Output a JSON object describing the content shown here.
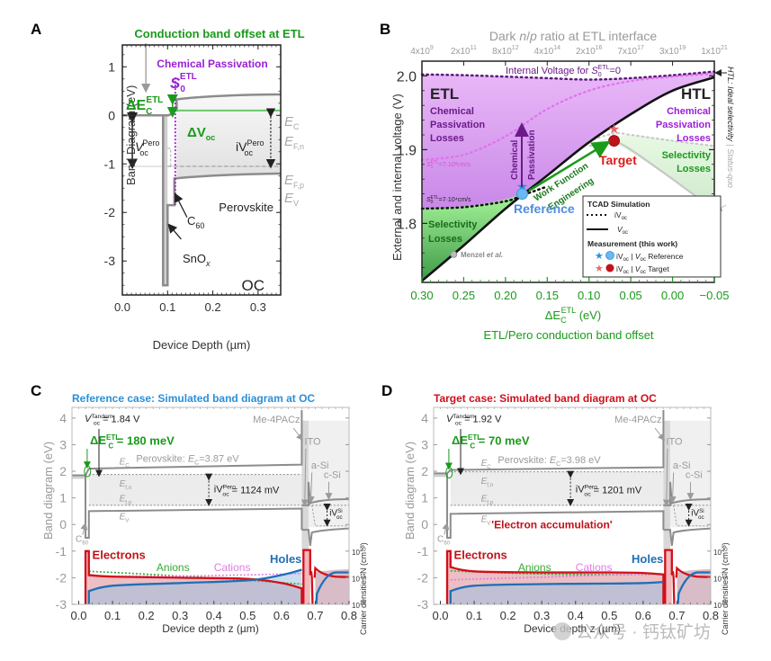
{
  "chart_data": [
    {
      "panel": "A",
      "type": "line",
      "title": "Conduction band offset at ETL",
      "xlabel": "Device Depth (µm)",
      "ylabel": "Band Diagram (eV)",
      "xlim": [
        0.0,
        0.35
      ],
      "ylim": [
        -3.7,
        1.45
      ],
      "xticks": [
        "0.0",
        "0.1",
        "0.2",
        "0.3"
      ],
      "yticks": [
        "1",
        "0",
        "-1",
        "-2",
        "-3"
      ],
      "series": [
        {
          "name": "E_C",
          "x": [
            0.0,
            0.09,
            0.1,
            0.115,
            0.12,
            0.2,
            0.35
          ],
          "y": [
            0.0,
            0.0,
            0.0,
            0.1,
            0.33,
            0.41,
            0.43
          ]
        },
        {
          "name": "E_F,n",
          "x": [
            0.115,
            0.35
          ],
          "y": [
            0.1,
            0.1
          ]
        },
        {
          "name": "E_F,p",
          "x": [
            0.1,
            0.35
          ],
          "y": [
            -1.05,
            -1.05
          ]
        },
        {
          "name": "E_V",
          "x": [
            0.09,
            0.115,
            0.12,
            0.2,
            0.35
          ],
          "y": [
            -3.5,
            -1.85,
            -1.3,
            -1.22,
            -1.2
          ]
        }
      ],
      "annotations": {
        "chem_passivation": "Chemical Passivation",
        "s0_main": "S",
        "s0_sub": "0",
        "s0_sup": "ETL",
        "delta_ec_main": "ΔE",
        "delta_ec_sub": "C",
        "delta_ec_sup": "ETL",
        "delta_voc_main": "ΔV",
        "delta_voc_sub": "oc",
        "voc_main": "V",
        "voc_sub": "oc",
        "voc_sup": "Pero",
        "ivoc_main": "iV",
        "ivoc_sub": "oc",
        "ivoc_sup": "Pero",
        "ec_main": "E",
        "ec_sub": "C",
        "efn_main": "E",
        "efn_sub": "F,n",
        "efp_main": "E",
        "efp_sub": "F,p",
        "ev_main": "E",
        "ev_sub": "V",
        "perovskite": "Perovskite",
        "c60_main": "C",
        "c60_sub": "60",
        "snox_main": "SnO",
        "snox_sub": "x",
        "oc": "OC"
      }
    },
    {
      "panel": "B",
      "type": "line",
      "title": "",
      "xlabel_main": "ΔE",
      "xlabel_sub": "C",
      "xlabel_sup": "ETL",
      "xlabel_unit": " (eV)",
      "xlabel2": "ETL/Pero conduction band offset",
      "ylabel": "External and internal voltage (V)",
      "top_axis_label": "Dark n/p ratio at ETL interface",
      "top_ticks": [
        {
          "m": "4x10",
          "e": "9"
        },
        {
          "m": "2x10",
          "e": "11"
        },
        {
          "m": "8x10",
          "e": "12"
        },
        {
          "m": "4x10",
          "e": "14"
        },
        {
          "m": "2x10",
          "e": "16"
        },
        {
          "m": "7x10",
          "e": "17"
        },
        {
          "m": "3x10",
          "e": "19"
        },
        {
          "m": "1x10",
          "e": "21"
        }
      ],
      "xlim": [
        0.3,
        -0.05
      ],
      "ylim": [
        1.72,
        2.02
      ],
      "xticks": [
        "0.30",
        "0.25",
        "0.20",
        "0.15",
        "0.10",
        "0.05",
        "0.00",
        "−0.05"
      ],
      "xtick_values": [
        0.3,
        0.25,
        0.2,
        0.15,
        0.1,
        0.05,
        0.0,
        -0.05
      ],
      "yticks": [
        "2.0",
        "1.9",
        "1.8"
      ],
      "ytick_values": [
        2.0,
        1.9,
        1.8
      ],
      "series": [
        {
          "name": "iVoc S0=0",
          "style": "dotted",
          "x": [
            0.3,
            0.25,
            0.2,
            0.15,
            0.1,
            0.05,
            0.0,
            -0.05
          ],
          "y": [
            2.002,
            2.001,
            1.999,
            1.997,
            1.995,
            1.997,
            2.001,
            2.006
          ]
        },
        {
          "name": "iVoc S0=7e2",
          "style": "dotted-pink",
          "x": [
            0.3,
            0.25,
            0.2,
            0.15,
            0.1,
            0.05,
            0.0,
            -0.05
          ],
          "y": [
            1.886,
            1.893,
            1.918,
            1.955,
            1.98,
            1.993,
            1.999,
            2.003
          ]
        },
        {
          "name": "iVoc S0=7e4",
          "style": "dotted",
          "x": [
            0.3,
            0.25,
            0.2,
            0.18,
            0.15
          ],
          "y": [
            1.82,
            1.822,
            1.83,
            1.838,
            1.85
          ]
        },
        {
          "name": "Voc ideal HTL",
          "style": "solid-black",
          "x": [
            0.3,
            0.25,
            0.2,
            0.15,
            0.1,
            0.05,
            0.0,
            -0.05
          ],
          "y": [
            1.722,
            1.77,
            1.82,
            1.865,
            1.91,
            1.948,
            1.98,
            1.998
          ]
        },
        {
          "name": "iVoc status-quo",
          "style": "dotted-gray",
          "x": [
            0.1,
            0.07,
            0.05,
            0.0,
            -0.05
          ],
          "y": [
            1.912,
            1.922,
            1.92,
            1.912,
            1.905
          ]
        },
        {
          "name": "Voc status-quo",
          "style": "solid-gray",
          "x": [
            0.1,
            0.07,
            0.05,
            0.0,
            -0.05
          ],
          "y": [
            1.905,
            1.91,
            1.9,
            1.86,
            1.818
          ]
        }
      ],
      "points": [
        {
          "name": "Reference iVoc",
          "marker": "star",
          "color": "#2b8fd9",
          "x": 0.18,
          "y": 1.85
        },
        {
          "name": "Reference Voc",
          "marker": "circle",
          "color": "#6ab8f0",
          "x": 0.18,
          "y": 1.84
        },
        {
          "name": "Target iVoc",
          "marker": "star",
          "color": "#e86a6a",
          "x": 0.07,
          "y": 1.928
        },
        {
          "name": "Target Voc",
          "marker": "circle",
          "color": "#c0121a",
          "x": 0.07,
          "y": 1.912
        },
        {
          "name": "Menzel et al.",
          "marker": "circle",
          "color": "#bbbbbb",
          "x": 0.262,
          "y": 1.758
        }
      ],
      "annotations": {
        "internal_voltage_main": "Internal Voltage for ",
        "internal_voltage_s": "S",
        "internal_voltage_sub": "0",
        "internal_voltage_sup": "ETL",
        "internal_voltage_end": "=0",
        "etl": "ETL",
        "htl": "HTL",
        "etl_losses": [
          "Chemical",
          "Passivation",
          "Losses"
        ],
        "htl_losses": [
          "Chemical",
          "Passivation",
          "Losses"
        ],
        "selectivity_left": [
          "Selectivity",
          "Losses"
        ],
        "selectivity_right": [
          "Selectivity",
          "Losses"
        ],
        "s0_7e2": "=7·10²cm/s",
        "s0_7e4": "=7·10⁴cm/s",
        "chem_pass_arrow": [
          "Chemical",
          "Passivation"
        ],
        "wf_arrow": [
          "Work Function",
          "Engineering"
        ],
        "reference": "Reference",
        "target": "Target",
        "menzel_main": "Menzel ",
        "menzel_etal": "et al.",
        "right_ideal": "HTL: Ideal selectivity",
        "right_sep": "|",
        "right_status": "Status-quo"
      },
      "legend": {
        "position": "bottom-right",
        "tcad_header": "TCAD Simulation",
        "ivoc": "iV",
        "voc": "V",
        "oc": "oc",
        "measurement_header": "Measurement (this work)",
        "reference_label": " Reference",
        "target_label": " Target",
        "sep": " | "
      }
    },
    {
      "panel": "C",
      "type": "line",
      "title": "Reference case: Simulated band diagram at OC",
      "xlabel": "Device depth z (µm)",
      "ylabel": "Band diagram (eV)",
      "ylabel_right": "Carrier densities N (cm⁻³)",
      "xlim": [
        -0.02,
        0.8
      ],
      "ylim": [
        -3,
        4.4
      ],
      "xticks": [
        "0.0",
        "0.1",
        "0.2",
        "0.3",
        "0.4",
        "0.5",
        "0.6",
        "0.7",
        "0.8"
      ],
      "yticks": [
        "4",
        "3",
        "2",
        "1",
        "0",
        "-1",
        "-2",
        "-3"
      ],
      "right_ticks": [
        {
          "m": "10",
          "e": "20"
        },
        {
          "m": "10",
          "e": "15"
        },
        {
          "m": "10",
          "e": "10"
        }
      ],
      "vtandem_value": " = 1.84 V",
      "delta_ec_value": " = 180 meV",
      "perovskite_ec_prefix": "Perovskite: ",
      "perovskite_ec_value": "=3.87 eV",
      "ivoc_pero_value": " = 1124 mV",
      "series_band": {
        "Ec": {
          "x": [
            -0.02,
            0.02,
            0.03,
            0.66
          ],
          "y": [
            1.85,
            1.85,
            2.1,
            2.25
          ]
        },
        "Ev": {
          "x": [
            0.02,
            0.03,
            0.66
          ],
          "y": [
            -0.5,
            0.5,
            0.6
          ]
        },
        "Efn": {
          "y": 1.88
        },
        "Efp": {
          "y": 0.72
        }
      },
      "series_density": {
        "electrons_log": {
          "x": [
            0.03,
            0.1,
            0.3,
            0.5,
            0.6,
            0.66
          ],
          "y": [
            15.5,
            15.2,
            15.0,
            14.8,
            14.0,
            13.0
          ]
        },
        "holes_log": {
          "x": [
            0.03,
            0.1,
            0.3,
            0.5,
            0.6,
            0.66
          ],
          "y": [
            12.5,
            13.5,
            14.0,
            14.5,
            15.5,
            16.5
          ]
        }
      }
    },
    {
      "panel": "D",
      "type": "line",
      "title": "Target case: Simulated band diagram at OC",
      "xlabel": "Device depth z (µm)",
      "ylabel": "Band diagram (eV)",
      "ylabel_right": "Carrier densities N (cm⁻³)",
      "xlim": [
        -0.02,
        0.8
      ],
      "ylim": [
        -3,
        4.4
      ],
      "xticks": [
        "0.0",
        "0.1",
        "0.2",
        "0.3",
        "0.4",
        "0.5",
        "0.6",
        "0.7",
        "0.8"
      ],
      "yticks": [
        "4",
        "3",
        "2",
        "1",
        "0",
        "-1",
        "-2",
        "-3"
      ],
      "right_ticks": [
        {
          "m": "10",
          "e": "20"
        },
        {
          "m": "10",
          "e": "15"
        },
        {
          "m": "10",
          "e": "10"
        }
      ],
      "vtandem_value": " = 1.92 V",
      "delta_ec_value": " = 70 meV",
      "perovskite_ec_prefix": "Perovskite: ",
      "perovskite_ec_value": "=3.98 eV",
      "ivoc_pero_value": " = 1201 mV",
      "electron_accumulation": "'Electron accumulation'",
      "series_band": {
        "Ec": {
          "x": [
            -0.02,
            0.02,
            0.03,
            0.66
          ],
          "y": [
            1.92,
            1.92,
            2.05,
            2.15
          ]
        },
        "Ev": {
          "x": [
            0.02,
            0.03,
            0.66
          ],
          "y": [
            -0.4,
            0.4,
            0.5
          ]
        },
        "Efn": {
          "y": 1.98
        },
        "Efp": {
          "y": 0.72
        }
      },
      "series_density": {
        "electrons_log": {
          "x": [
            0.03,
            0.1,
            0.3,
            0.5,
            0.6,
            0.66
          ],
          "y": [
            17.0,
            16.2,
            16.0,
            16.0,
            15.9,
            15.6
          ]
        },
        "holes_log": {
          "x": [
            0.03,
            0.1,
            0.3,
            0.5,
            0.6,
            0.66
          ],
          "y": [
            12.5,
            13.5,
            13.8,
            13.9,
            14.0,
            14.2
          ]
        }
      }
    }
  ],
  "common": {
    "vtandem_main": "V",
    "vtandem_sub": "oc",
    "vtandem_sup": "Tandem",
    "delta_ec_main": "ΔE",
    "delta_ec_sub": "C",
    "delta_ec_sup": "ETL",
    "ivoc_pero_main": "iV",
    "ivoc_pero_sub": "oc",
    "ivoc_pero_sup": "Pero",
    "ivoc_si_main": "iV",
    "ivoc_si_sub": "oc",
    "ivoc_si_sup": "Si",
    "ec_main": "E",
    "ec_sub": "C",
    "efn_main": "E",
    "efn_sub": "f,n",
    "efp_main": "E",
    "efp_sub": "f,p",
    "ev_main": "E",
    "ev_sub": "V",
    "me4pacz": "Me-4PACz",
    "ito": "ITO",
    "asi": "a-Si",
    "csi": "c-Si",
    "c60_main": "C",
    "c60_sub": "60",
    "electrons": "Electrons",
    "anions": "Anions",
    "cations": "Cations",
    "holes": "Holes",
    "ec_italic": "E",
    "ec_italic_sub": "C"
  },
  "panel_labels": [
    "A",
    "B",
    "C",
    "D"
  ],
  "watermark": "公众号 · 钙钛矿坊",
  "colors": {
    "green": "#1a9a1a",
    "purple": "#9b1fd6",
    "dark_purple": "#6b1a8a",
    "blue": "#2b8fd9",
    "red": "#c0121a",
    "gray": "#8c8c8c",
    "light_gray": "#b0b0b0"
  }
}
